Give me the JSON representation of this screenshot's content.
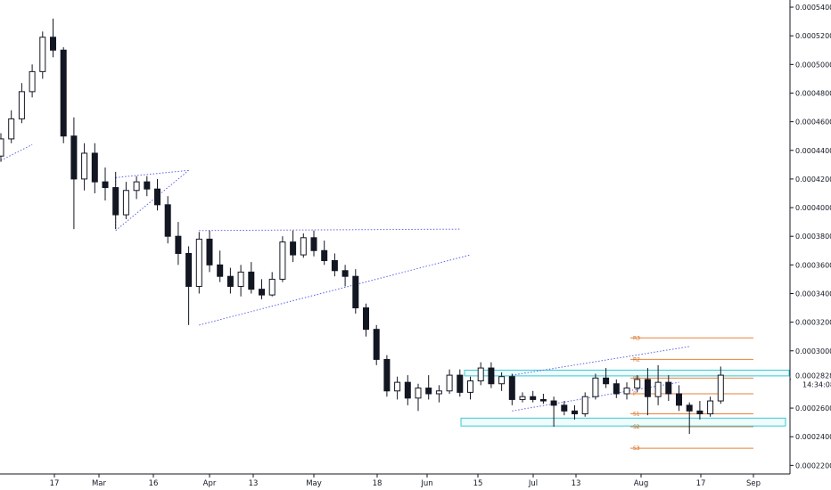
{
  "chart_data": {
    "type": "candlestick",
    "y_axis": {
      "ticks": [
        "0.00054000",
        "0.00052000",
        "0.00050000",
        "0.00048000",
        "0.00046000",
        "0.00044000",
        "0.00042000",
        "0.00040000",
        "0.00038000",
        "0.00036000",
        "0.00034000",
        "0.00032000",
        "0.00030000",
        "0.00028000",
        "0.00026000",
        "0.00024000",
        "0.00022000"
      ],
      "range": [
        0.000214,
        0.000545
      ]
    },
    "x_axis": {
      "ticks": [
        "17",
        "Mar",
        "16",
        "Apr",
        "13",
        "May",
        "18",
        "Jun",
        "15",
        "Jul",
        "13",
        "Aug",
        "17",
        "Sep"
      ]
    },
    "last_price": "0.00028280",
    "countdown": "14:34:08",
    "pivots": [
      {
        "label": "R3",
        "value": 0.000309
      },
      {
        "label": "R2",
        "value": 0.000294
      },
      {
        "label": "R1",
        "value": 0.000281
      },
      {
        "label": "P",
        "value": 0.00027
      },
      {
        "label": "S1",
        "value": 0.000256
      },
      {
        "label": "S2",
        "value": 0.000247
      },
      {
        "label": "S3",
        "value": 0.000232
      }
    ],
    "zones": [
      {
        "name": "resistance-zone",
        "top": 0.0002865,
        "bottom": 0.0002825
      },
      {
        "name": "support-zone",
        "top": 0.000253,
        "bottom": 0.0002475
      }
    ],
    "trendlines": [
      {
        "name": "wedge-1-top",
        "points": [
          [
            0,
            0.000433
          ],
          [
            3,
            0.000444
          ]
        ]
      },
      {
        "name": "triangle-1-top",
        "points": [
          [
            11,
            0.000421
          ],
          [
            18,
            0.000426
          ]
        ]
      },
      {
        "name": "triangle-1-bottom",
        "points": [
          [
            11,
            0.000384
          ],
          [
            18,
            0.000426
          ]
        ]
      },
      {
        "name": "triangle-1-left",
        "points": [
          [
            11,
            0.000421
          ],
          [
            11,
            0.000384
          ]
        ]
      },
      {
        "name": "triangle-2-top",
        "points": [
          [
            19,
            0.000384
          ],
          [
            44,
            0.000385
          ]
        ]
      },
      {
        "name": "triangle-2-bottom",
        "points": [
          [
            19,
            0.000318
          ],
          [
            45,
            0.000367
          ]
        ]
      },
      {
        "name": "channel-top",
        "points": [
          [
            49,
            0.000283
          ],
          [
            66,
            0.000303
          ]
        ]
      },
      {
        "name": "channel-bottom",
        "points": [
          [
            49,
            0.000258
          ],
          [
            65,
            0.000278
          ]
        ]
      }
    ],
    "candles": [
      [
        0.000436,
        0.000452,
        0.000432,
        0.000448
      ],
      [
        0.000448,
        0.000468,
        0.000445,
        0.000462
      ],
      [
        0.000462,
        0.000487,
        0.000459,
        0.000481
      ],
      [
        0.000481,
        0.0005,
        0.000477,
        0.000495
      ],
      [
        0.000495,
        0.000523,
        0.00049,
        0.000519
      ],
      [
        0.000519,
        0.000532,
        0.000505,
        0.00051
      ],
      [
        0.00051,
        0.000512,
        0.000445,
        0.00045
      ],
      [
        0.00045,
        0.000463,
        0.000385,
        0.00042
      ],
      [
        0.00042,
        0.000445,
        0.000412,
        0.000438
      ],
      [
        0.000438,
        0.000445,
        0.00041,
        0.000418
      ],
      [
        0.000418,
        0.000428,
        0.000405,
        0.000414
      ],
      [
        0.000414,
        0.000425,
        0.000385,
        0.000395
      ],
      [
        0.000395,
        0.000418,
        0.000392,
        0.000412
      ],
      [
        0.000412,
        0.000422,
        0.000406,
        0.000418
      ],
      [
        0.000418,
        0.000422,
        0.000408,
        0.000413
      ],
      [
        0.000413,
        0.00042,
        0.000398,
        0.000402
      ],
      [
        0.000402,
        0.000408,
        0.000375,
        0.00038
      ],
      [
        0.00038,
        0.00039,
        0.00036,
        0.000368
      ],
      [
        0.000368,
        0.000373,
        0.000318,
        0.000345
      ],
      [
        0.000345,
        0.000383,
        0.00034,
        0.000378
      ],
      [
        0.000378,
        0.000384,
        0.000355,
        0.00036
      ],
      [
        0.00036,
        0.00037,
        0.000348,
        0.000352
      ],
      [
        0.000352,
        0.000358,
        0.00034,
        0.000345
      ],
      [
        0.000345,
        0.00036,
        0.000338,
        0.000355
      ],
      [
        0.000355,
        0.000362,
        0.00034,
        0.000343
      ],
      [
        0.000343,
        0.00035,
        0.000336,
        0.000339
      ],
      [
        0.000339,
        0.000355,
        0.000338,
        0.00035
      ],
      [
        0.00035,
        0.00038,
        0.000348,
        0.000376
      ],
      [
        0.000376,
        0.000384,
        0.000362,
        0.000367
      ],
      [
        0.000367,
        0.000382,
        0.000365,
        0.000379
      ],
      [
        0.000379,
        0.000384,
        0.000366,
        0.00037
      ],
      [
        0.00037,
        0.000377,
        0.00036,
        0.000363
      ],
      [
        0.000363,
        0.000368,
        0.000352,
        0.000356
      ],
      [
        0.000356,
        0.00036,
        0.000345,
        0.000352
      ],
      [
        0.000352,
        0.000357,
        0.000326,
        0.00033
      ],
      [
        0.00033,
        0.000333,
        0.00031,
        0.000315
      ],
      [
        0.000315,
        0.000318,
        0.00029,
        0.000294
      ],
      [
        0.000294,
        0.000297,
        0.000268,
        0.000272
      ],
      [
        0.000272,
        0.000282,
        0.000266,
        0.000278
      ],
      [
        0.000278,
        0.000283,
        0.000262,
        0.000267
      ],
      [
        0.000267,
        0.000277,
        0.000258,
        0.000274
      ],
      [
        0.000274,
        0.000283,
        0.000266,
        0.00027
      ],
      [
        0.00027,
        0.000276,
        0.000264,
        0.000272
      ],
      [
        0.000272,
        0.000287,
        0.00027,
        0.000283
      ],
      [
        0.000283,
        0.000287,
        0.000268,
        0.000271
      ],
      [
        0.000271,
        0.000282,
        0.000266,
        0.000279
      ],
      [
        0.000279,
        0.000292,
        0.000276,
        0.000288
      ],
      [
        0.000288,
        0.000292,
        0.000274,
        0.000277
      ],
      [
        0.000277,
        0.000285,
        0.000272,
        0.000282
      ],
      [
        0.000282,
        0.000284,
        0.000262,
        0.000266
      ],
      [
        0.000266,
        0.000271,
        0.000264,
        0.000268
      ],
      [
        0.000268,
        0.000272,
        0.000264,
        0.000266
      ],
      [
        0.000266,
        0.00027,
        0.000263,
        0.000265
      ],
      [
        0.000265,
        0.000268,
        0.000247,
        0.000262
      ],
      [
        0.000262,
        0.000265,
        0.000255,
        0.000258
      ],
      [
        0.000258,
        0.000262,
        0.000252,
        0.000256
      ],
      [
        0.000256,
        0.000271,
        0.000254,
        0.000268
      ],
      [
        0.000268,
        0.000284,
        0.000266,
        0.000281
      ],
      [
        0.000281,
        0.000288,
        0.000274,
        0.000277
      ],
      [
        0.000277,
        0.00028,
        0.000267,
        0.00027
      ],
      [
        0.00027,
        0.000278,
        0.000266,
        0.000274
      ],
      [
        0.000274,
        0.000283,
        0.000271,
        0.00028
      ],
      [
        0.00028,
        0.000288,
        0.000255,
        0.000268
      ],
      [
        0.000268,
        0.00029,
        0.000262,
        0.000278
      ],
      [
        0.000278,
        0.000283,
        0.000265,
        0.00027
      ],
      [
        0.00027,
        0.000276,
        0.000258,
        0.000262
      ],
      [
        0.000262,
        0.000264,
        0.000242,
        0.000258
      ],
      [
        0.000258,
        0.000265,
        0.000252,
        0.000256
      ],
      [
        0.000256,
        0.000268,
        0.000254,
        0.000265
      ],
      [
        0.000265,
        0.000289,
        0.000263,
        0.000283
      ]
    ]
  }
}
